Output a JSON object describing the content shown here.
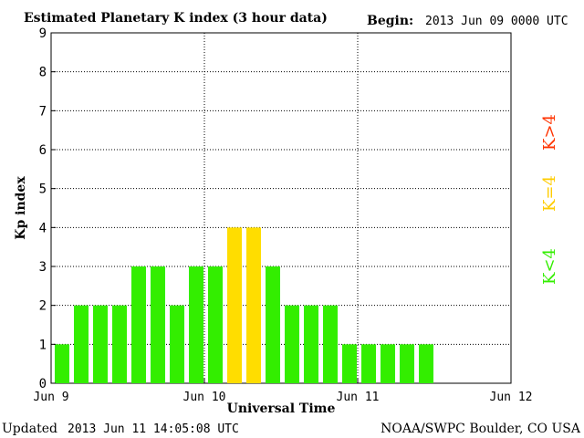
{
  "chart_data": {
    "type": "bar",
    "title": "Estimated Planetary K index (3 hour data)",
    "begin_label": "Begin:",
    "begin_value": "2013 Jun 09 0000 UTC",
    "ylabel": "Kp index",
    "xlabel": "Universal Time",
    "ylim": [
      0,
      9
    ],
    "yticks": [
      "0",
      "1",
      "2",
      "3",
      "4",
      "5",
      "6",
      "7",
      "8",
      "9"
    ],
    "xticks": [
      "Jun 9",
      "Jun 10",
      "Jun 11",
      "Jun 12"
    ],
    "slots_per_day": 8,
    "values": [
      1,
      2,
      2,
      2,
      3,
      3,
      2,
      3,
      3,
      4,
      4,
      3,
      2,
      2,
      2,
      1,
      1,
      1,
      1,
      1
    ],
    "grid": true,
    "legend": [
      {
        "label": "K>4",
        "color": "#ff3300"
      },
      {
        "label": "K=4",
        "color": "#ffcc00"
      },
      {
        "label": "K<4",
        "color": "#33ee00"
      }
    ],
    "colors": {
      "below": "#33ee00",
      "equal": "#ffdd00",
      "above": "#ff3300"
    }
  },
  "footer": {
    "updated_label": "Updated",
    "updated_value": "2013 Jun 11 14:05:08 UTC",
    "source": "NOAA/SWPC Boulder, CO USA"
  }
}
